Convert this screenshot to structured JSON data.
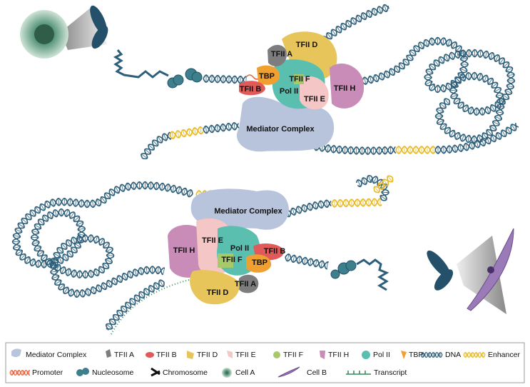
{
  "top_complex": {
    "labels": [
      "TFII A",
      "TFII D",
      "TBP",
      "TFII F",
      "TFII B",
      "Pol II",
      "TFII H",
      "TFII E",
      "Mediator Complex"
    ]
  },
  "bottom_complex": {
    "labels": [
      "Mediator Complex",
      "TFII E",
      "TFII H",
      "Pol II",
      "TFII B",
      "TFII F",
      "TBP",
      "TFII A",
      "TFII D"
    ]
  },
  "legend": {
    "items": [
      "Mediator Complex",
      "TFII A",
      "TFII B",
      "TFII D",
      "TFII E",
      "TFII F",
      "TFII H",
      "Pol II",
      "TBP",
      "DNA",
      "Enhancer",
      "Promoter",
      "Nucleosome",
      "Chromosome",
      "Cell A",
      "Cell B",
      "Transcript"
    ]
  }
}
